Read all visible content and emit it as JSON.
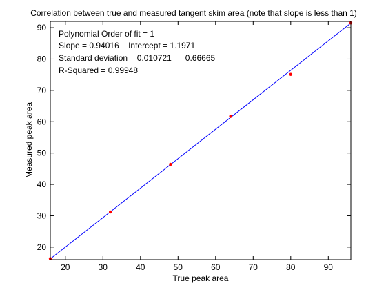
{
  "chart_data": {
    "type": "scatter",
    "title": "Correlation between true and measured tangent skim area (note that slope is less than 1)",
    "xlabel": "True peak area",
    "ylabel": "Measured peak area",
    "xlim": [
      16,
      96
    ],
    "ylim": [
      16,
      92
    ],
    "xticks": [
      20,
      30,
      40,
      50,
      60,
      70,
      80,
      90
    ],
    "yticks": [
      20,
      30,
      40,
      50,
      60,
      70,
      80,
      90
    ],
    "grid": false,
    "series": [
      {
        "kind": "points",
        "color": "#ff0000",
        "x": [
          16,
          32,
          48,
          64,
          80,
          96
        ],
        "y": [
          16.3,
          31.2,
          46.4,
          61.7,
          75.1,
          91.5
        ]
      },
      {
        "kind": "line",
        "color": "#0000ff",
        "x": [
          16,
          96
        ],
        "y": [
          16.24,
          91.45
        ]
      }
    ],
    "annotations": [
      "Polynomial Order of fit = 1",
      "Slope = 0.94016    Intercept = 1.1971",
      "Standard deviation = 0.010721      0.66665",
      "R-Squared = 0.99948"
    ]
  }
}
